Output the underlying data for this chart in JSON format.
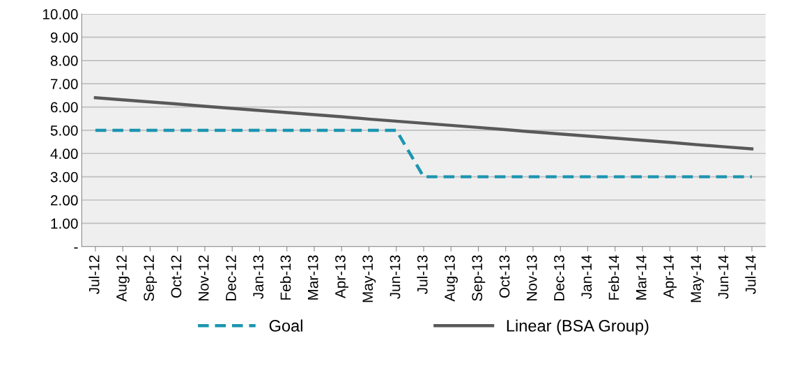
{
  "chart_data": {
    "type": "line",
    "categories": [
      "Jul-12",
      "Aug-12",
      "Sep-12",
      "Oct-12",
      "Nov-12",
      "Dec-12",
      "Jan-13",
      "Feb-13",
      "Mar-13",
      "Apr-13",
      "May-13",
      "Jun-13",
      "Jul-13",
      "Aug-13",
      "Sep-13",
      "Oct-13",
      "Nov-13",
      "Dec-13",
      "Jan-14",
      "Feb-14",
      "Mar-14",
      "Apr-14",
      "May-14",
      "Jun-14",
      "Jul-14"
    ],
    "series": [
      {
        "name": "Goal",
        "color": "#1b95b0",
        "line_style": "dashed",
        "values": [
          5,
          5,
          5,
          5,
          5,
          5,
          5,
          5,
          5,
          5,
          5,
          5,
          3,
          3,
          3,
          3,
          3,
          3,
          3,
          3,
          3,
          3,
          3,
          3,
          3
        ]
      },
      {
        "name": "Linear (BSA Group)",
        "color": "#595959",
        "line_style": "solid",
        "values": [
          6.4,
          6.31,
          6.22,
          6.13,
          6.03,
          5.94,
          5.85,
          5.76,
          5.67,
          5.58,
          5.48,
          5.39,
          5.3,
          5.21,
          5.12,
          5.03,
          4.93,
          4.84,
          4.75,
          4.66,
          4.57,
          4.48,
          4.38,
          4.29,
          4.2
        ]
      }
    ],
    "ylim": [
      0,
      10
    ],
    "yticks": [
      {
        "value": 0,
        "label": "-"
      },
      {
        "value": 1,
        "label": "1.00"
      },
      {
        "value": 2,
        "label": "2.00"
      },
      {
        "value": 3,
        "label": "3.00"
      },
      {
        "value": 4,
        "label": "4.00"
      },
      {
        "value": 5,
        "label": "5.00"
      },
      {
        "value": 6,
        "label": "6.00"
      },
      {
        "value": 7,
        "label": "7.00"
      },
      {
        "value": 8,
        "label": "8.00"
      },
      {
        "value": 9,
        "label": "9.00"
      },
      {
        "value": 10,
        "label": "10.00"
      }
    ],
    "grid": "y",
    "legend": "bottom",
    "marker": "none"
  }
}
